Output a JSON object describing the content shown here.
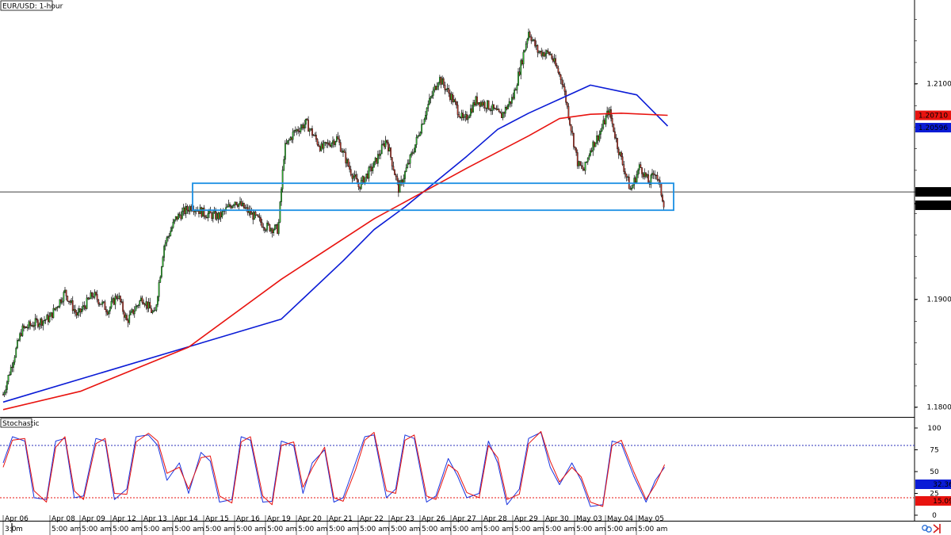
{
  "chart_data": [
    {
      "type": "candlestick",
      "title": "EUR/USD: 1-hour",
      "yaxis": {
        "ticks": [
          1.21003,
          1.19003,
          1.18003
        ],
        "range": [
          1.1792,
          1.2178
        ]
      },
      "price_tags": [
        {
          "value": "1.20710",
          "color": "#e8130f"
        },
        {
          "value": "1.20596",
          "color": "#0a1bd6"
        },
        {
          "value": "1.20000",
          "color": "#000000"
        },
        {
          "value": "1.19876",
          "color": "#000000",
          "marker": "▼"
        }
      ],
      "horizontal_line": 1.2,
      "highlight_zone": {
        "low": 1.1983,
        "high": 1.2008,
        "color": "#1a8fe3"
      },
      "series": [
        {
          "name": "",
          "color": "#0a1bd6",
          "style": "line",
          "x": [
            0,
            9,
            11,
            12,
            13,
            15,
            16,
            17,
            18,
            19,
            20.5,
            21.5
          ],
          "y": [
            1.1805,
            1.1882,
            1.1936,
            1.1965,
            1.1986,
            1.2033,
            1.2058,
            1.2073,
            1.2086,
            1.2099,
            1.209,
            1.2061
          ]
        },
        {
          "name": "",
          "color": "#e8130f",
          "style": "line",
          "x": [
            0,
            2.5,
            6,
            9,
            12,
            15,
            17,
            18,
            19,
            20,
            21.5
          ],
          "y": [
            1.1798,
            1.1815,
            1.1856,
            1.1919,
            1.1975,
            1.2022,
            1.2052,
            1.2068,
            1.2072,
            1.2073,
            1.2071
          ]
        }
      ],
      "price_path": {
        "x": [
          0,
          0.6,
          1,
          1.5,
          2,
          2.4,
          2.9,
          3.4,
          3.7,
          4,
          4.5,
          4.9,
          5.2,
          5.6,
          6.1,
          6.5,
          7,
          7.5,
          8,
          8.5,
          8.9,
          9.1,
          9.4,
          9.8,
          10.3,
          10.8,
          11.2,
          11.5,
          12,
          12.4,
          12.8,
          13.3,
          13.7,
          14.1,
          14.5,
          14.9,
          15.3,
          15.7,
          16.1,
          16.5,
          16.8,
          17,
          17.3,
          17.7,
          18.1,
          18.4,
          18.6,
          18.8,
          19,
          19.3,
          19.6,
          19.9,
          20.3,
          20.6,
          20.9,
          21.1,
          21.4
        ],
        "y": [
          1.1812,
          1.1872,
          1.1878,
          1.1883,
          1.1907,
          1.1885,
          1.1905,
          1.189,
          1.1905,
          1.188,
          1.1902,
          1.1885,
          1.195,
          1.1976,
          1.1987,
          1.198,
          1.1977,
          1.1992,
          1.198,
          1.1968,
          1.1965,
          1.204,
          1.2055,
          1.2064,
          1.204,
          1.205,
          1.2022,
          1.2005,
          1.2025,
          1.2049,
          1.2002,
          1.2041,
          1.2077,
          1.2106,
          1.2088,
          1.2065,
          1.2085,
          1.208,
          1.207,
          1.2088,
          1.2124,
          1.2149,
          1.213,
          1.2128,
          1.2102,
          1.2055,
          1.2025,
          1.202,
          1.204,
          1.2054,
          1.2076,
          1.204,
          1.2001,
          1.2024,
          1.2008,
          1.202,
          1.1987
        ]
      },
      "xaxis": {
        "ticks": [
          "Apr 06",
          "Apr 08",
          "Apr 09",
          "Apr 12",
          "Apr 13",
          "Apr 14",
          "Apr 15",
          "Apr 16",
          "Apr 19",
          "Apr 20",
          "Apr 21",
          "Apr 22",
          "Apr 23",
          "Apr 26",
          "Apr 27",
          "Apr 28",
          "Apr 29",
          "Apr 30",
          "May 03",
          "May 04",
          "May 05"
        ],
        "sub_ticks": [
          "5:00 am",
          "5:00 am",
          "5:00 am",
          "5:00 am",
          "5:00 am",
          "5:00 am",
          "5:00 am",
          "5:00 am",
          "5:00 am",
          "5:00 am",
          "5:00 am",
          "5:00 am",
          "5:00 am",
          "5:00 am",
          "5:00 am",
          "5:00 am",
          "5:00 am",
          "5:00 am",
          "5:00 am",
          "5:00 am",
          "5:00 am"
        ],
        "first_sub_tick": "3:0"
      }
    },
    {
      "type": "line",
      "title": "Stochastic",
      "yaxis": {
        "ticks": [
          100,
          75,
          50,
          25,
          0
        ],
        "range": [
          0,
          100
        ]
      },
      "levels": [
        {
          "value": 80,
          "color": "#2a2fb8"
        },
        {
          "value": 20,
          "color": "#e8130f"
        }
      ],
      "value_tags": [
        {
          "value": "32.36",
          "color": "#0a1bd6"
        },
        {
          "value": "15.09",
          "color": "#e8130f"
        }
      ],
      "series": [
        {
          "name": "",
          "color": "#1a35e0",
          "x": [
            0,
            0.3,
            0.7,
            1,
            1.4,
            1.7,
            2,
            2.3,
            2.6,
            3,
            3.3,
            3.6,
            4,
            4.3,
            4.7,
            5,
            5.3,
            5.7,
            6,
            6.4,
            6.7,
            7,
            7.4,
            7.7,
            8,
            8.4,
            8.7,
            9,
            9.4,
            9.7,
            10,
            10.4,
            10.7,
            11,
            11.4,
            11.7,
            12,
            12.4,
            12.7,
            13,
            13.3,
            13.7,
            14,
            14.4,
            14.7,
            15,
            15.4,
            15.7,
            16,
            16.3,
            16.7,
            17,
            17.4,
            17.7,
            18,
            18.4,
            18.7,
            19,
            19.4,
            19.7,
            20,
            20.4,
            20.8,
            21.1,
            21.4
          ],
          "y": [
            60,
            90,
            85,
            20,
            18,
            85,
            88,
            20,
            22,
            88,
            85,
            18,
            30,
            90,
            92,
            80,
            40,
            60,
            25,
            72,
            62,
            15,
            18,
            90,
            86,
            15,
            16,
            85,
            80,
            25,
            60,
            75,
            15,
            20,
            60,
            90,
            92,
            20,
            30,
            92,
            88,
            15,
            22,
            65,
            45,
            20,
            25,
            85,
            60,
            12,
            30,
            88,
            95,
            55,
            35,
            60,
            40,
            10,
            12,
            85,
            82,
            45,
            15,
            40,
            55
          ]
        },
        {
          "name": "",
          "color": "#e8130f",
          "x": [
            0,
            0.3,
            0.7,
            1,
            1.4,
            1.7,
            2,
            2.3,
            2.6,
            3,
            3.3,
            3.6,
            4,
            4.3,
            4.7,
            5,
            5.3,
            5.7,
            6,
            6.4,
            6.7,
            7,
            7.4,
            7.7,
            8,
            8.4,
            8.7,
            9,
            9.4,
            9.7,
            10,
            10.4,
            10.7,
            11,
            11.4,
            11.7,
            12,
            12.4,
            12.7,
            13,
            13.3,
            13.7,
            14,
            14.4,
            14.7,
            15,
            15.4,
            15.7,
            16,
            16.3,
            16.7,
            17,
            17.4,
            17.7,
            18,
            18.4,
            18.7,
            19,
            19.4,
            19.7,
            20,
            20.4,
            20.8,
            21.1,
            21.4
          ],
          "y": [
            55,
            86,
            88,
            28,
            15,
            78,
            90,
            28,
            18,
            82,
            88,
            25,
            24,
            84,
            94,
            85,
            48,
            55,
            30,
            66,
            68,
            22,
            14,
            84,
            90,
            22,
            12,
            80,
            84,
            32,
            54,
            78,
            20,
            16,
            52,
            86,
            95,
            28,
            25,
            86,
            92,
            22,
            18,
            58,
            50,
            26,
            20,
            80,
            66,
            18,
            24,
            82,
            96,
            62,
            38,
            55,
            44,
            15,
            10,
            80,
            86,
            50,
            18,
            35,
            58
          ]
        }
      ]
    }
  ]
}
